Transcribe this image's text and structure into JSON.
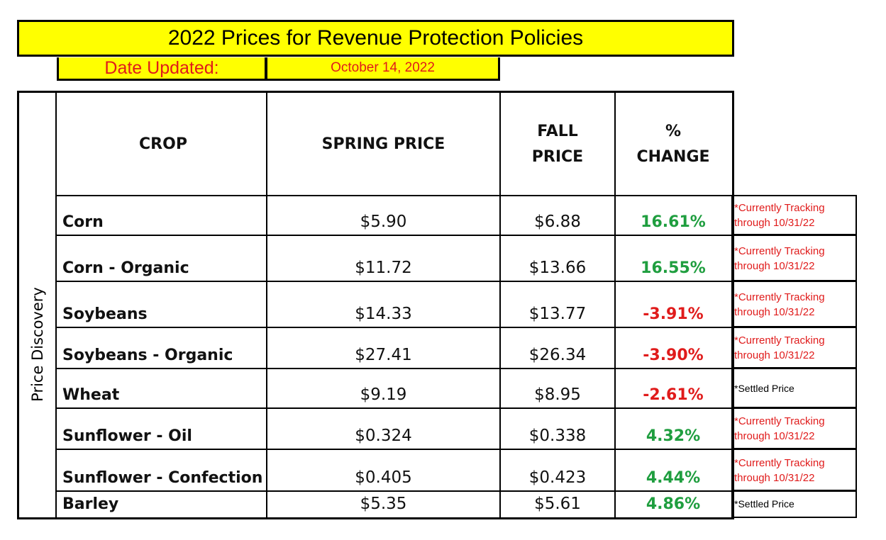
{
  "title": "2022 Prices for Revenue Protection Policies",
  "date_label": "Date Updated:",
  "date_value": "October 14, 2022",
  "side_label": "Price Discovery",
  "headers": {
    "crop": "CROP",
    "spring": "SPRING PRICE",
    "fall_line1": "FALL",
    "fall_line2": "PRICE",
    "pct_line1": "%",
    "pct_line2": "CHANGE"
  },
  "rows": [
    {
      "crop": "Corn",
      "spring": "$5.90",
      "fall": "$6.88",
      "pct": "16.61%",
      "note1": "*Currently Tracking",
      "note2": "through 10/31/22"
    },
    {
      "crop": "Corn - Organic",
      "spring": "$11.72",
      "fall": "$13.66",
      "pct": "16.55%",
      "note1": "*Currently Tracking",
      "note2": "through 10/31/22"
    },
    {
      "crop": "Soybeans",
      "spring": "$14.33",
      "fall": "$13.77",
      "pct": "-3.91%",
      "note1": "*Currently Tracking",
      "note2": "through 10/31/22"
    },
    {
      "crop": "Soybeans - Organic",
      "spring": "$27.41",
      "fall": "$26.34",
      "pct": "-3.90%",
      "note1": "*Currently Tracking",
      "note2": "through 10/31/22"
    },
    {
      "crop": "Wheat",
      "spring": "$9.19",
      "fall": "$8.95",
      "pct": "-2.61%",
      "note1": "*Settled Price",
      "note2": ""
    },
    {
      "crop": "Sunflower - Oil",
      "spring": "$0.324",
      "fall": "$0.338",
      "pct": "4.32%",
      "note1": "*Currently Tracking",
      "note2": "through 10/31/22"
    },
    {
      "crop": "Sunflower - Confection",
      "spring": "$0.405",
      "fall": "$0.423",
      "pct": "4.44%",
      "note1": "*Currently Tracking",
      "note2": "through 10/31/22"
    },
    {
      "crop": "Barley",
      "spring": "$5.35",
      "fall": "$5.61",
      "pct": "4.86%",
      "note1": "*Settled Price",
      "note2": ""
    }
  ],
  "colors": {
    "highlight": "#ffff00",
    "positive": "#1f9e3f",
    "negative": "#e01b1b"
  }
}
